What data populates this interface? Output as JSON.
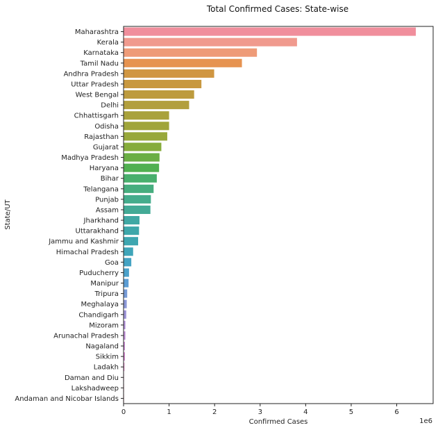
{
  "chart_data": {
    "type": "bar",
    "orientation": "horizontal",
    "title": "Total Confirmed Cases: State-wise",
    "xlabel": "Confirmed Cases",
    "ylabel": "State/UT",
    "x_scale_label": "1e6",
    "xlim": [
      0,
      6.8
    ],
    "x_ticks": [
      "0",
      "1",
      "2",
      "3",
      "4",
      "5",
      "6"
    ],
    "x_tick_values": [
      0,
      1,
      2,
      3,
      4,
      5,
      6
    ],
    "grid": false,
    "legend": "none",
    "categories": [
      "Maharashtra",
      "Kerala",
      "Karnataka",
      "Tamil Nadu",
      "Andhra Pradesh",
      "Uttar Pradesh",
      "West Bengal",
      "Delhi",
      "Chhattisgarh",
      "Odisha",
      "Rajasthan",
      "Gujarat",
      "Madhya Pradesh",
      "Haryana",
      "Bihar",
      "Telangana",
      "Punjab",
      "Assam",
      "Jharkhand",
      "Uttarakhand",
      "Jammu and Kashmir",
      "Himachal Pradesh",
      "Goa",
      "Puducherry",
      "Manipur",
      "Tripura",
      "Meghalaya",
      "Chandigarh",
      "Mizoram",
      "Arunachal Pradesh",
      "Nagaland",
      "Sikkim",
      "Ladakh",
      "Daman and Diu",
      "Lakshadweep",
      "Andaman and Nicobar Islands"
    ],
    "values": [
      6.42,
      3.81,
      2.93,
      2.6,
      1.99,
      1.71,
      1.55,
      1.44,
      1.0,
      1.0,
      0.96,
      0.83,
      0.79,
      0.78,
      0.73,
      0.66,
      0.6,
      0.59,
      0.35,
      0.34,
      0.32,
      0.21,
      0.17,
      0.12,
      0.11,
      0.08,
      0.07,
      0.06,
      0.04,
      0.04,
      0.03,
      0.03,
      0.02,
      0.01,
      0.01,
      0.01
    ],
    "colors": [
      "#f08e9c",
      "#f09a8e",
      "#ee9b78",
      "#e69350",
      "#d09641",
      "#c8983f",
      "#bd9b3e",
      "#b29f3d",
      "#a9a23c",
      "#a0a53b",
      "#98a83b",
      "#86ac3b",
      "#6aae44",
      "#50b050",
      "#48af6d",
      "#46ad7e",
      "#44ac8c",
      "#43aa96",
      "#40a8a4",
      "#3ea7aa",
      "#3ea6b0",
      "#3fa5b9",
      "#44a3c3",
      "#4ba1ca",
      "#5b9dd4",
      "#759ad6",
      "#8c98d8",
      "#9f95d8",
      "#b08fd7",
      "#bf8dd6",
      "#cb89d4",
      "#d686d0",
      "#e088c5",
      "#e68abb",
      "#eb8db0",
      "#ed8fa6"
    ]
  }
}
